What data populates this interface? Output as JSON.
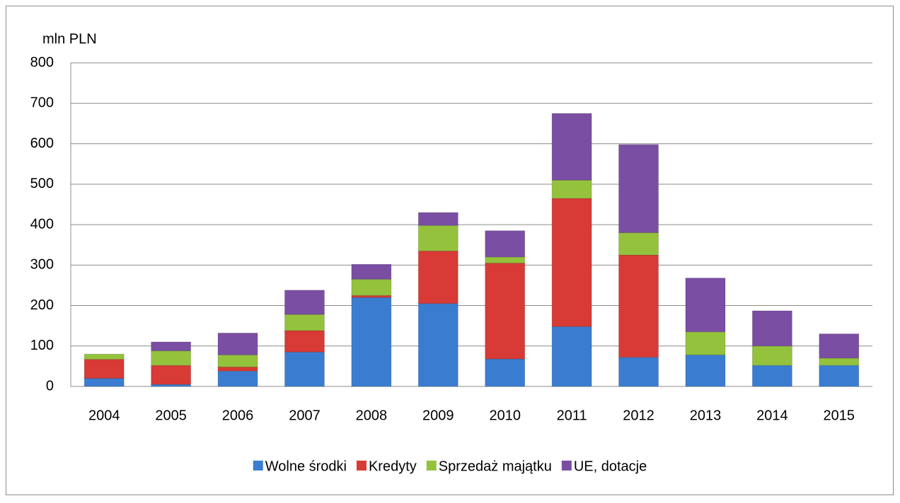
{
  "chart_data": {
    "type": "stacked_bar",
    "y_label": "mln PLN",
    "categories": [
      "2004",
      "2005",
      "2006",
      "2007",
      "2008",
      "2009",
      "2010",
      "2011",
      "2012",
      "2013",
      "2014",
      "2015"
    ],
    "series": [
      {
        "name": "Wolne środki",
        "color": "#3a7dd0",
        "values": [
          20,
          5,
          38,
          85,
          220,
          205,
          68,
          148,
          72,
          78,
          52,
          52
        ]
      },
      {
        "name": "Kredyty",
        "color": "#d83a35",
        "values": [
          47,
          47,
          10,
          53,
          5,
          130,
          237,
          317,
          253,
          0,
          0,
          0
        ]
      },
      {
        "name": "Sprzedaż majątku",
        "color": "#94c23c",
        "values": [
          13,
          36,
          30,
          40,
          40,
          63,
          15,
          45,
          55,
          57,
          48,
          18
        ]
      },
      {
        "name": "UE, dotacje",
        "color": "#7a4ea3",
        "values": [
          0,
          22,
          54,
          60,
          37,
          32,
          65,
          165,
          218,
          133,
          87,
          60
        ]
      }
    ],
    "ylim": [
      0,
      800
    ],
    "yticks": [
      0,
      100,
      200,
      300,
      400,
      500,
      600,
      700,
      800
    ],
    "grid": true,
    "legend": "bottom"
  }
}
